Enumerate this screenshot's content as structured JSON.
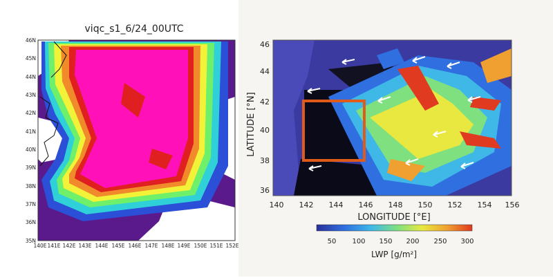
{
  "left_map": {
    "title": "viqc_s1_6/24_00UTC",
    "y_ticks": [
      "46N",
      "45N",
      "44N",
      "43N",
      "42N",
      "41N",
      "40N",
      "39N",
      "38N",
      "37N",
      "36N",
      "35N"
    ],
    "x_ticks": [
      "140E",
      "141E",
      "142E",
      "143E",
      "144E",
      "145E",
      "146E",
      "147E",
      "148E",
      "149E",
      "150E",
      "151E",
      "152E"
    ],
    "colors": {
      "land": "#ffffff",
      "outer": "#5a1a8c",
      "band_blue": "#2b4fd6",
      "band_cyan": "#30d0d8",
      "band_green": "#6ff06a",
      "band_yellow": "#f2f238",
      "band_orange": "#f08a2a",
      "band_red": "#e02020",
      "core": "#ff10b8"
    }
  },
  "right_map": {
    "y_axis_title": "LATITUDE [°N]",
    "x_axis_title": "LONGITUDE [°E]",
    "y_ticks": [
      "46",
      "44",
      "42",
      "40",
      "38",
      "36"
    ],
    "x_ticks": [
      "140",
      "142",
      "144",
      "146",
      "148",
      "150",
      "152",
      "154",
      "156"
    ],
    "colorbar": {
      "title": "LWP [g/m²]",
      "ticks": [
        "50",
        "100",
        "150",
        "200",
        "250",
        "300"
      ],
      "colors": [
        "#2a2f9a",
        "#2f6fe0",
        "#3fb8e8",
        "#7fe07f",
        "#e8e840",
        "#f0a030",
        "#e03a20"
      ]
    },
    "box_color": "#e05a1a"
  }
}
